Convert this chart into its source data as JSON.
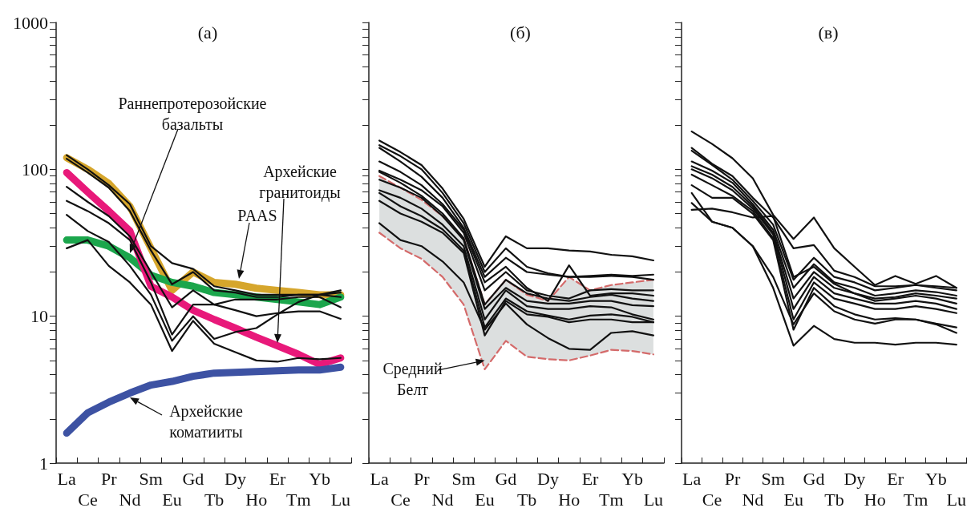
{
  "chart_data": [
    {
      "type": "line",
      "title": "(a)",
      "categories": [
        "La",
        "Ce",
        "Pr",
        "Nd",
        "Sm",
        "Eu",
        "Gd",
        "Tb",
        "Dy",
        "Ho",
        "Er",
        "Tm",
        "Yb",
        "Lu"
      ],
      "log": "y",
      "grid": false,
      "marker": "none",
      "line_style": "solid",
      "ylim": [
        1,
        1000
      ],
      "yticks": [
        1,
        {
          "value": 2,
          "label": null
        },
        {
          "value": 3,
          "label": null
        },
        {
          "value": 4,
          "label": null
        },
        {
          "value": 5,
          "label": null
        },
        {
          "value": 6,
          "label": null
        },
        {
          "value": 7,
          "label": null
        },
        {
          "value": 8,
          "label": null
        },
        {
          "value": 9,
          "label": null
        },
        10,
        {
          "value": 20,
          "label": null
        },
        {
          "value": 30,
          "label": null
        },
        {
          "value": 40,
          "label": null
        },
        {
          "value": 50,
          "label": null
        },
        {
          "value": 60,
          "label": null
        },
        {
          "value": 70,
          "label": null
        },
        {
          "value": 80,
          "label": null
        },
        {
          "value": 90,
          "label": null
        },
        100,
        {
          "value": 200,
          "label": null
        },
        {
          "value": 300,
          "label": null
        },
        {
          "value": 400,
          "label": null
        },
        {
          "value": 500,
          "label": null
        },
        {
          "value": 600,
          "label": null
        },
        {
          "value": 700,
          "label": null
        },
        {
          "value": 800,
          "label": null
        },
        {
          "value": 900,
          "label": null
        },
        1000
      ],
      "annotations": [
        "Раннепротерозойские\nбазальты",
        "PAAS",
        "Архейские\nгранитоиды",
        {
          "text": "Архейские\nкоматииты",
          "x": "Nd",
          "y": 2.8
        }
      ],
      "series": [
        {
          "color": "#d6a62c",
          "values": [
            120,
            100,
            80,
            56,
            29,
            15,
            20,
            17,
            16.5,
            15.5,
            15,
            14.5,
            14,
            14
          ]
        },
        {
          "color": "#1ba64c",
          "values": [
            33,
            33,
            30,
            25,
            19,
            17,
            16,
            14.5,
            14,
            13.5,
            13,
            12.5,
            12,
            13.5
          ]
        },
        {
          "color": "#e8197a",
          "values": [
            95,
            70,
            52,
            38,
            16,
            13.5,
            11,
            9.5,
            8.3,
            7.2,
            6.3,
            5.5,
            4.7,
            5.2
          ]
        },
        {
          "color": "#3d52a3",
          "values": [
            1.6,
            2.2,
            2.6,
            3.0,
            3.4,
            3.6,
            3.9,
            4.1,
            4.15,
            4.2,
            4.25,
            4.3,
            4.3,
            4.5
          ]
        },
        {
          "color": "#111111",
          "values": [
            125,
            100,
            78,
            58,
            30,
            23,
            21,
            16,
            15,
            14,
            14,
            14,
            14,
            15
          ]
        },
        {
          "color": "#111111",
          "values": [
            118,
            95,
            75,
            52,
            28,
            16.5,
            20,
            15,
            14.5,
            13.5,
            13.5,
            14,
            14,
            13.5
          ]
        },
        {
          "color": "#111111",
          "values": [
            76,
            60,
            48,
            35,
            20,
            11.5,
            15,
            12,
            11,
            10,
            10.5,
            10.8,
            10.8,
            9.6
          ]
        },
        {
          "color": "#111111",
          "values": [
            61,
            52,
            43,
            33,
            17,
            7.5,
            12,
            12,
            13,
            13,
            13,
            13.5,
            13.5,
            11.5
          ]
        },
        {
          "color": "#111111",
          "values": [
            49,
            38,
            32,
            22,
            14,
            6.8,
            10,
            7,
            7.8,
            8.3,
            10.3,
            12.5,
            14,
            14.5
          ]
        },
        {
          "color": "#111111",
          "values": [
            29,
            33,
            22,
            17,
            12,
            5.8,
            9.3,
            6.5,
            5.7,
            5,
            4.9,
            5.2,
            5.1,
            5.2
          ]
        }
      ]
    },
    {
      "type": "line",
      "title": "(б)",
      "categories": [
        "La",
        "Ce",
        "Pr",
        "Nd",
        "Sm",
        "Eu",
        "Gd",
        "Tb",
        "Dy",
        "Ho",
        "Er",
        "Tm",
        "Yb",
        "Lu"
      ],
      "log": "y",
      "grid": false,
      "marker": "none",
      "tick_labels": "x",
      "ylim": [
        1,
        1000
      ],
      "yticks": [
        1,
        {
          "value": 2,
          "label": null
        },
        {
          "value": 3,
          "label": null
        },
        {
          "value": 4,
          "label": null
        },
        {
          "value": 5,
          "label": null
        },
        {
          "value": 6,
          "label": null
        },
        {
          "value": 7,
          "label": null
        },
        {
          "value": 8,
          "label": null
        },
        {
          "value": 9,
          "label": null
        },
        10,
        {
          "value": 20,
          "label": null
        },
        {
          "value": 30,
          "label": null
        },
        {
          "value": 40,
          "label": null
        },
        {
          "value": 50,
          "label": null
        },
        {
          "value": 60,
          "label": null
        },
        {
          "value": 70,
          "label": null
        },
        {
          "value": 80,
          "label": null
        },
        {
          "value": 90,
          "label": null
        },
        100,
        {
          "value": 200,
          "label": null
        },
        {
          "value": 300,
          "label": null
        },
        {
          "value": 400,
          "label": null
        },
        {
          "value": 500,
          "label": null
        },
        {
          "value": 600,
          "label": null
        },
        {
          "value": 700,
          "label": null
        },
        {
          "value": 800,
          "label": null
        },
        {
          "value": 900,
          "label": null
        },
        1000
      ],
      "annotations": [
        {
          "text": "Средний\nБелт",
          "x": "Eu",
          "y": 5
        }
      ],
      "series": [
        {
          "color": "#dcdfdf",
          "values": [
            null,
            null,
            null,
            null,
            null,
            null,
            null,
            null,
            null,
            null,
            null,
            null,
            null,
            null
          ],
          "lower": [
            37,
            29,
            24.6,
            18.5,
            12,
            4.35,
            6.8,
            5.3,
            5.1,
            5,
            5.4,
            5.9,
            5.8,
            5.5
          ],
          "upper": [
            90,
            75,
            62,
            48,
            34,
            12,
            17.7,
            14,
            12.7,
            18.5,
            15,
            16.3,
            17,
            17.7
          ]
        },
        {
          "color": "#d46a6a",
          "line_style": "dashed",
          "values": [
            90,
            75,
            62,
            48,
            34,
            12,
            17.7,
            14,
            12.7,
            18.5,
            15,
            16.3,
            17,
            17.7
          ]
        },
        {
          "color": "#d46a6a",
          "line_style": "dashed",
          "values": [
            37,
            29,
            24.6,
            18.5,
            12,
            4.35,
            6.8,
            5.3,
            5.1,
            5,
            5.4,
            5.9,
            5.8,
            5.5
          ]
        },
        {
          "color": "#111111",
          "values": [
            157,
            131,
            107,
            74,
            46,
            21.7,
            35,
            29,
            29,
            28,
            27.6,
            26.2,
            25.6,
            24
          ]
        },
        {
          "color": "#111111",
          "values": [
            146,
            123,
            100,
            69,
            43,
            20,
            29,
            21.7,
            19.6,
            18.5,
            18.8,
            19.2,
            18.8,
            19.2
          ]
        },
        {
          "color": "#111111",
          "values": [
            140,
            113,
            89,
            64,
            40,
            18.5,
            25,
            20,
            19.2,
            18.5,
            18.5,
            18.8,
            18.5,
            17.7
          ]
        },
        {
          "color": "#111111",
          "values": [
            113,
            96,
            78,
            58,
            38.8,
            17,
            21.7,
            15.6,
            12.7,
            22.2,
            13.8,
            14.3,
            14.3,
            13.8
          ]
        },
        {
          "color": "#111111",
          "values": [
            98,
            85,
            72,
            56,
            37,
            15,
            20,
            15,
            13.8,
            13.2,
            15,
            15.3,
            15,
            15
          ]
        },
        {
          "color": "#111111",
          "values": [
            96,
            81,
            66,
            50,
            34,
            12,
            17.7,
            14.3,
            13.2,
            12.7,
            13.5,
            14,
            13.2,
            12.7
          ]
        },
        {
          "color": "#111111",
          "values": [
            85,
            75,
            64,
            48,
            33,
            11.2,
            15.6,
            12.7,
            12.2,
            12.2,
            12.7,
            12.7,
            11.9,
            11.7
          ]
        },
        {
          "color": "#111111",
          "values": [
            72,
            64,
            54,
            42,
            30,
            9.5,
            15,
            11.7,
            11.2,
            11.2,
            11.7,
            11.5,
            10.3,
            9.5
          ]
        },
        {
          "color": "#111111",
          "values": [
            69,
            56,
            48,
            39,
            28,
            8.4,
            13.2,
            10.8,
            10.1,
            9.5,
            10.1,
            10.3,
            9.9,
            9.1
          ]
        },
        {
          "color": "#111111",
          "values": [
            61,
            50,
            44,
            37,
            27,
            7.4,
            12.7,
            10.3,
            9.9,
            9.1,
            9.5,
            9.5,
            9.1,
            9.1
          ]
        },
        {
          "color": "#111111",
          "values": [
            43,
            33,
            30,
            23.6,
            17,
            8.1,
            12.2,
            8.8,
            7.1,
            6.0,
            5.9,
            7.7,
            7.9,
            7.4
          ]
        }
      ]
    },
    {
      "type": "line",
      "title": "(в)",
      "categories": [
        "La",
        "Ce",
        "Pr",
        "Nd",
        "Sm",
        "Eu",
        "Gd",
        "Tb",
        "Dy",
        "Ho",
        "Er",
        "Tm",
        "Yb",
        "Lu"
      ],
      "log": "y",
      "grid": false,
      "marker": "none",
      "tick_labels": "x",
      "ylim": [
        1,
        1000
      ],
      "yticks": [
        1,
        {
          "value": 2,
          "label": null
        },
        {
          "value": 3,
          "label": null
        },
        {
          "value": 4,
          "label": null
        },
        {
          "value": 5,
          "label": null
        },
        {
          "value": 6,
          "label": null
        },
        {
          "value": 7,
          "label": null
        },
        {
          "value": 8,
          "label": null
        },
        {
          "value": 9,
          "label": null
        },
        10,
        {
          "value": 20,
          "label": null
        },
        {
          "value": 30,
          "label": null
        },
        {
          "value": 40,
          "label": null
        },
        {
          "value": 50,
          "label": null
        },
        {
          "value": 60,
          "label": null
        },
        {
          "value": 70,
          "label": null
        },
        {
          "value": 80,
          "label": null
        },
        {
          "value": 90,
          "label": null
        },
        100,
        {
          "value": 200,
          "label": null
        },
        {
          "value": 300,
          "label": null
        },
        {
          "value": 400,
          "label": null
        },
        {
          "value": 500,
          "label": null
        },
        {
          "value": 600,
          "label": null
        },
        {
          "value": 700,
          "label": null
        },
        {
          "value": 800,
          "label": null
        },
        {
          "value": 900,
          "label": null
        },
        1000
      ],
      "series": [
        {
          "color": "#111111",
          "values": [
            181,
            149,
            119,
            87,
            49,
            33.6,
            47,
            29,
            21.7,
            16.3,
            18.8,
            16.6,
            18.8,
            15.6
          ]
        },
        {
          "color": "#111111",
          "values": [
            140,
            109,
            90,
            64,
            47,
            29,
            30.5,
            20.4,
            18.5,
            16,
            16,
            16.3,
            16,
            15.6
          ]
        },
        {
          "color": "#111111",
          "values": [
            134,
            107,
            85,
            61,
            42,
            17.7,
            25,
            18.5,
            17,
            15,
            15.6,
            16.3,
            15.6,
            15
          ]
        },
        {
          "color": "#111111",
          "values": [
            113,
            98,
            81,
            58,
            38.8,
            15.6,
            22.6,
            17,
            15.6,
            13.8,
            14.3,
            15,
            14.6,
            13.8
          ]
        },
        {
          "color": "#111111",
          "values": [
            105,
            92,
            76,
            56,
            37,
            13.2,
            20,
            15.6,
            14.3,
            12.7,
            13.2,
            13.8,
            13.2,
            12.2
          ]
        },
        {
          "color": "#111111",
          "values": [
            100,
            87,
            72,
            54,
            36,
            11.2,
            18.5,
            14.3,
            13.2,
            12.2,
            12.2,
            12.7,
            12.2,
            11.2
          ]
        },
        {
          "color": "#111111",
          "values": [
            92,
            78,
            66,
            52,
            34,
            9.5,
            17,
            13.2,
            12.2,
            11.2,
            11.2,
            11.7,
            11.2,
            10.5
          ]
        },
        {
          "color": "#111111",
          "values": [
            78,
            64,
            64,
            50,
            33,
            8.1,
            15.6,
            11.7,
            10.3,
            9.5,
            9.7,
            9.5,
            8.9,
            8.4
          ]
        },
        {
          "color": "#111111",
          "values": [
            53,
            54,
            51,
            47,
            48,
            18.5,
            21.7,
            16.6,
            14.3,
            13.2,
            13.5,
            14.3,
            13.8,
            13.2
          ]
        },
        {
          "color": "#111111",
          "values": [
            59,
            44,
            40,
            30,
            18.5,
            8.8,
            14.3,
            10.8,
            9.5,
            8.9,
            9.5,
            9.5,
            8.8,
            7.7
          ]
        },
        {
          "color": "#111111",
          "values": [
            69,
            44,
            40,
            30,
            15.6,
            6.3,
            8.6,
            7,
            6.6,
            6.6,
            6.4,
            6.6,
            6.6,
            6.4
          ]
        }
      ]
    }
  ]
}
